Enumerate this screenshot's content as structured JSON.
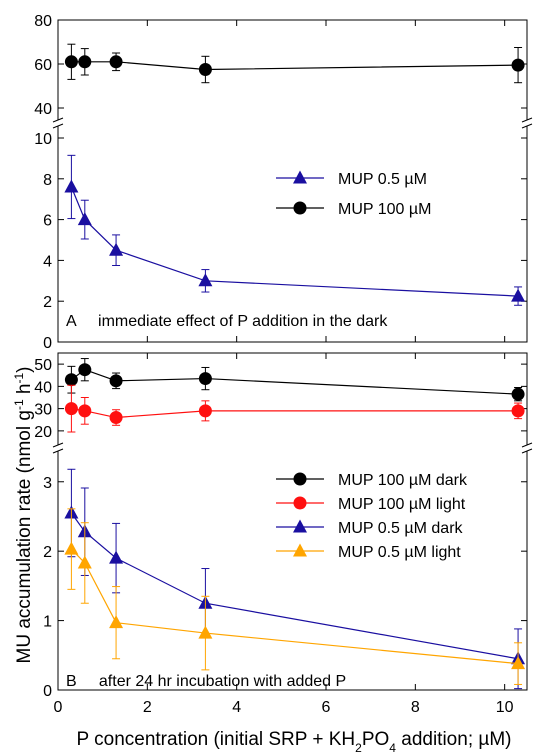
{
  "figure": {
    "ylabel_main": "MU accumulation rate (nmol g",
    "ylabel_sup1": "-1",
    "ylabel_mid": " h",
    "ylabel_sup2": "-1",
    "ylabel_end": ")",
    "xlabel_pre": "P concentration (initial SRP + KH",
    "xlabel_sub1": "2",
    "xlabel_mid": "PO",
    "xlabel_sub2": "4",
    "xlabel_post": " addition; µM)"
  },
  "colors": {
    "blue": "#1a0fa0",
    "black": "#000000",
    "red": "#ff1010",
    "orange": "#ffa500"
  },
  "chart_data": [
    {
      "panel": "A",
      "type": "scatter",
      "annotation": "A     immediate effect of P addition in the dark",
      "x": [
        0.3,
        0.6,
        1.3,
        3.3,
        10.3
      ],
      "xlim": [
        0,
        10.5
      ],
      "xticks": [
        "0",
        "2",
        "4",
        "6",
        "8",
        "10"
      ],
      "upper_ylim": [
        40,
        80
      ],
      "upper_yticks": [
        "40",
        "60",
        "80"
      ],
      "lower_ylim": [
        0,
        10
      ],
      "lower_yticks": [
        "0",
        "2",
        "4",
        "6",
        "8",
        "10"
      ],
      "legend_position": "top-right",
      "series": [
        {
          "name": "MUP 0.5 µM",
          "marker": "triangle",
          "color": "#1a0fa0",
          "axis": "lower",
          "values": [
            7.6,
            6.0,
            4.5,
            3.0,
            2.25
          ],
          "errors": [
            1.55,
            0.95,
            0.75,
            0.55,
            0.45
          ]
        },
        {
          "name": "MUP 100 µM",
          "marker": "circle",
          "color": "#000000",
          "axis": "upper",
          "values": [
            61,
            61,
            61,
            57.5,
            59.5
          ],
          "errors": [
            8,
            6,
            4,
            6,
            8
          ]
        }
      ]
    },
    {
      "panel": "B",
      "type": "scatter",
      "annotation": "B     after 24 hr incubation with added P",
      "x": [
        0.3,
        0.6,
        1.3,
        3.3,
        10.3
      ],
      "xlim": [
        0,
        10.5
      ],
      "xticks": [
        "0",
        "2",
        "4",
        "6",
        "8",
        "10"
      ],
      "upper_ylim": [
        15,
        55
      ],
      "upper_yticks": [
        "20",
        "30",
        "40",
        "50"
      ],
      "lower_ylim": [
        0,
        3.4
      ],
      "lower_yticks": [
        "0",
        "1",
        "2",
        "3"
      ],
      "legend_position": "middle-right",
      "series": [
        {
          "name": "MUP 100 µM dark",
          "marker": "circle",
          "color": "#000000",
          "axis": "upper",
          "values": [
            43,
            47.5,
            42.5,
            43.5,
            36.5
          ],
          "errors": [
            6,
            5,
            3.5,
            5,
            3
          ]
        },
        {
          "name": "MUP 100 µM light",
          "marker": "circle",
          "color": "#ff1010",
          "axis": "upper",
          "values": [
            30,
            29,
            26,
            29,
            29
          ],
          "errors": [
            10.5,
            6,
            3.5,
            4.5,
            3.5
          ]
        },
        {
          "name": "MUP 0.5 µM dark",
          "marker": "triangle",
          "color": "#1a0fa0",
          "axis": "lower",
          "values": [
            2.55,
            2.28,
            1.9,
            1.25,
            0.45
          ],
          "errors": [
            0.63,
            0.63,
            0.5,
            0.5,
            0.43
          ]
        },
        {
          "name": "MUP 0.5 µM light",
          "marker": "triangle",
          "color": "#ffa500",
          "axis": "lower",
          "values": [
            2.03,
            1.83,
            0.97,
            0.82,
            0.38
          ],
          "errors": [
            0.58,
            0.58,
            0.52,
            0.53,
            0.3
          ]
        }
      ]
    }
  ]
}
